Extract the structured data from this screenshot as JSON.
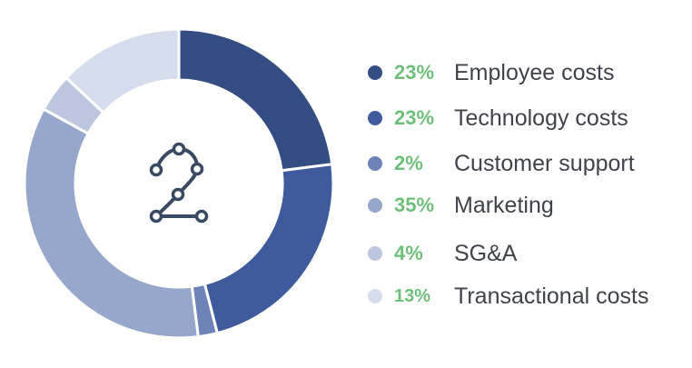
{
  "chart_data": {
    "type": "pie",
    "variant": "donut",
    "categories": [
      "Employee costs",
      "Technology costs",
      "Customer support",
      "Marketing",
      "SG&A",
      "Transactional costs"
    ],
    "values": [
      23,
      23,
      2,
      35,
      4,
      13
    ],
    "labels": [
      "23%",
      "23%",
      "2%",
      "35%",
      "4%",
      "13%"
    ],
    "colors": [
      "#344d82",
      "#3f5b9d",
      "#6e84b8",
      "#97a7cc",
      "#bcc6df",
      "#d5dcec"
    ],
    "legend_position": "right",
    "center_icon": "route-icon",
    "pct_color": "#6fbf7a"
  }
}
